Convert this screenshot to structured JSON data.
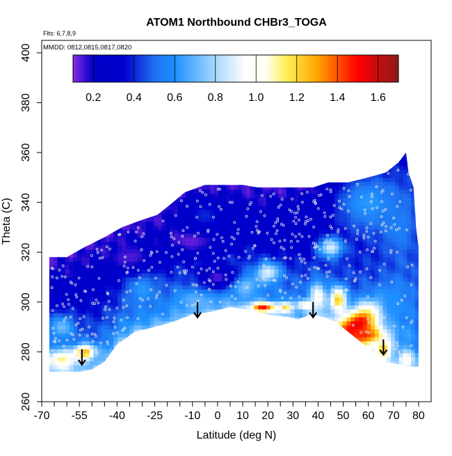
{
  "chart_data": {
    "type": "heatmap",
    "title": "ATOM1 Northbound CHBr3_TOGA",
    "annotation_flights": "Flts: 6,7,8,9",
    "annotation_dates": "MMDD: 0812,0815,0817,0820",
    "xlabel": "Latitude (deg N)",
    "ylabel": "Theta (C)",
    "xlim": [
      -70,
      85
    ],
    "ylim": [
      260,
      405
    ],
    "x_ticks": [
      -70,
      -55,
      -40,
      -25,
      -10,
      0,
      10,
      20,
      30,
      40,
      50,
      60,
      70,
      80
    ],
    "x_minor_ticks": [
      -65,
      -60,
      -50,
      -45,
      -35,
      -30,
      -20,
      -15,
      -5,
      5,
      15,
      25,
      35,
      45,
      55,
      65,
      75
    ],
    "y_ticks": [
      260,
      280,
      300,
      320,
      340,
      360,
      380,
      400
    ],
    "colorbar": {
      "range": [
        0.1,
        1.7
      ],
      "ticks": [
        0.2,
        0.4,
        0.6,
        0.8,
        1.0,
        1.2,
        1.4,
        1.6
      ],
      "tick_labels": [
        "0.2",
        "0.4",
        "0.6",
        "0.8",
        "1.0",
        "1.2",
        "1.4",
        "1.6"
      ],
      "stops": [
        {
          "v": 0.1,
          "color": "#8a2be2"
        },
        {
          "v": 0.2,
          "color": "#0000c8"
        },
        {
          "v": 0.35,
          "color": "#0000cd"
        },
        {
          "v": 0.5,
          "color": "#1e6ff0"
        },
        {
          "v": 0.6,
          "color": "#1e90ff"
        },
        {
          "v": 0.8,
          "color": "#a8d8ff"
        },
        {
          "v": 0.95,
          "color": "#ffffff"
        },
        {
          "v": 1.05,
          "color": "#fffff0"
        },
        {
          "v": 1.15,
          "color": "#ffee55"
        },
        {
          "v": 1.3,
          "color": "#ffa500"
        },
        {
          "v": 1.5,
          "color": "#ff0000"
        },
        {
          "v": 1.7,
          "color": "#8b1a1a"
        }
      ]
    },
    "domain_top": [
      [
        -67,
        318
      ],
      [
        -60,
        318
      ],
      [
        -53,
        322
      ],
      [
        -45,
        326
      ],
      [
        -38,
        330
      ],
      [
        -30,
        333
      ],
      [
        -24,
        335
      ],
      [
        -19,
        339
      ],
      [
        -13,
        344
      ],
      [
        -5,
        347
      ],
      [
        3,
        347
      ],
      [
        10,
        347
      ],
      [
        16,
        346
      ],
      [
        24,
        346
      ],
      [
        32,
        346
      ],
      [
        38,
        346
      ],
      [
        44,
        348
      ],
      [
        52,
        348
      ],
      [
        60,
        350
      ],
      [
        67,
        352
      ],
      [
        72,
        356
      ],
      [
        75,
        360
      ],
      [
        76,
        352
      ],
      [
        78,
        346
      ],
      [
        79,
        330
      ],
      [
        80,
        322
      ]
    ],
    "domain_bottom": [
      [
        -67,
        272
      ],
      [
        -60,
        272
      ],
      [
        -55,
        272
      ],
      [
        -50,
        273
      ],
      [
        -45,
        276
      ],
      [
        -40,
        283
      ],
      [
        -33,
        288
      ],
      [
        -25,
        290
      ],
      [
        -18,
        292
      ],
      [
        -10,
        295
      ],
      [
        -3,
        296
      ],
      [
        5,
        298
      ],
      [
        12,
        297
      ],
      [
        20,
        295
      ],
      [
        28,
        294
      ],
      [
        32,
        293
      ],
      [
        37,
        295
      ],
      [
        42,
        294
      ],
      [
        47,
        292
      ],
      [
        52,
        288
      ],
      [
        57,
        284
      ],
      [
        62,
        280
      ],
      [
        67,
        276
      ],
      [
        72,
        275
      ],
      [
        78,
        274
      ],
      [
        80,
        274
      ]
    ],
    "features": [
      {
        "x": 55,
        "y": 290,
        "rx": 6,
        "ry": 12,
        "value": 1.6,
        "angle": -50
      },
      {
        "x": 48,
        "y": 301,
        "rx": 3,
        "ry": 5,
        "value": 1.25
      },
      {
        "x": 58,
        "y": 287,
        "rx": 9,
        "ry": 4,
        "value": 1.45
      },
      {
        "x": 66,
        "y": 281,
        "rx": 3,
        "ry": 4,
        "value": 1.25
      },
      {
        "x": 75,
        "y": 277,
        "rx": 3,
        "ry": 3,
        "value": 1.05
      },
      {
        "x": -62,
        "y": 277,
        "rx": 6,
        "ry": 4,
        "value": 1.12
      },
      {
        "x": -53,
        "y": 280,
        "rx": 4,
        "ry": 3,
        "value": 1.3
      },
      {
        "x": 18,
        "y": 298,
        "rx": 5,
        "ry": 2,
        "value": 1.5
      },
      {
        "x": 27,
        "y": 298,
        "rx": 3,
        "ry": 2,
        "value": 1.2
      },
      {
        "x": 35,
        "y": 299,
        "rx": 3,
        "ry": 2,
        "value": 1.1
      },
      {
        "x": 40,
        "y": 302,
        "rx": 3,
        "ry": 6,
        "value": 1.0
      },
      {
        "x": 10,
        "y": 307,
        "rx": 6,
        "ry": 4,
        "value": 0.8
      },
      {
        "x": 20,
        "y": 312,
        "rx": 5,
        "ry": 4,
        "value": 0.9
      },
      {
        "x": -8,
        "y": 301,
        "rx": 8,
        "ry": 4,
        "value": 0.7
      },
      {
        "x": -62,
        "y": 290,
        "rx": 5,
        "ry": 5,
        "value": 0.72
      },
      {
        "x": -30,
        "y": 305,
        "rx": 6,
        "ry": 6,
        "value": 0.62
      },
      {
        "x": 45,
        "y": 322,
        "rx": 5,
        "ry": 4,
        "value": 0.9
      },
      {
        "x": 60,
        "y": 340,
        "rx": 14,
        "ry": 12,
        "value": 0.62
      },
      {
        "x": 72,
        "y": 330,
        "rx": 6,
        "ry": 10,
        "value": 0.55
      },
      {
        "x": 70,
        "y": 300,
        "rx": 6,
        "ry": 8,
        "value": 0.6
      },
      {
        "x": -10,
        "y": 325,
        "rx": 12,
        "ry": 6,
        "value": 0.12
      },
      {
        "x": -35,
        "y": 318,
        "rx": 8,
        "ry": 5,
        "value": 0.14
      },
      {
        "x": 0,
        "y": 310,
        "rx": 8,
        "ry": 5,
        "value": 0.14
      },
      {
        "x": 30,
        "y": 330,
        "rx": 8,
        "ry": 8,
        "value": 0.3
      },
      {
        "x": -5,
        "y": 335,
        "rx": 8,
        "ry": 6,
        "value": 0.4
      }
    ],
    "arrows": [
      [
        -54,
        281
      ],
      [
        -8,
        300
      ],
      [
        38,
        300
      ],
      [
        66,
        285
      ]
    ]
  }
}
